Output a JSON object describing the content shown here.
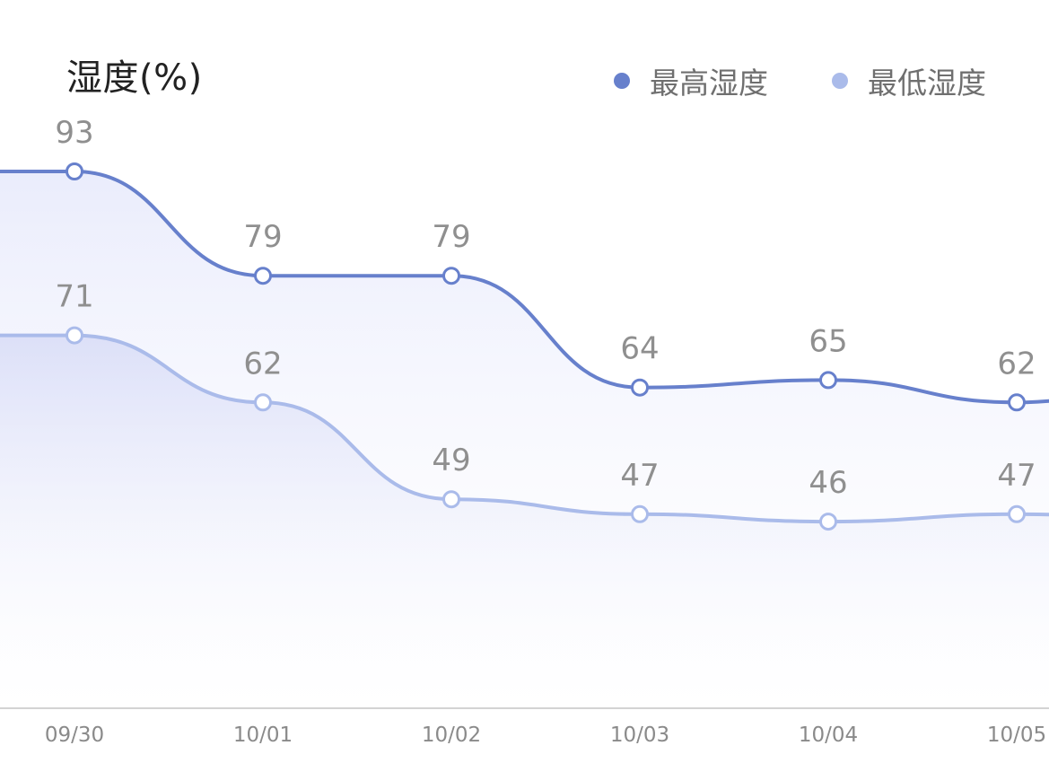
{
  "chart_data": {
    "type": "line",
    "title": "湿度(%)",
    "categories": [
      "09/30",
      "10/01",
      "10/02",
      "10/03",
      "10/04",
      "10/05"
    ],
    "series": [
      {
        "name": "最高湿度",
        "values": [
          93,
          79,
          79,
          64,
          65,
          62
        ],
        "color": "#6780cc"
      },
      {
        "name": "最低湿度",
        "values": [
          71,
          62,
          49,
          47,
          46,
          47
        ],
        "color": "#aabbea"
      }
    ],
    "edge_values": {
      "before": {
        "最高湿度": 93,
        "最低湿度": 71
      },
      "after": {
        "最高湿度": 66,
        "最低湿度": 46
      }
    },
    "area_fill": true,
    "grid": false,
    "legend_position": "top-right",
    "axis_color": "#d3d3d3"
  }
}
